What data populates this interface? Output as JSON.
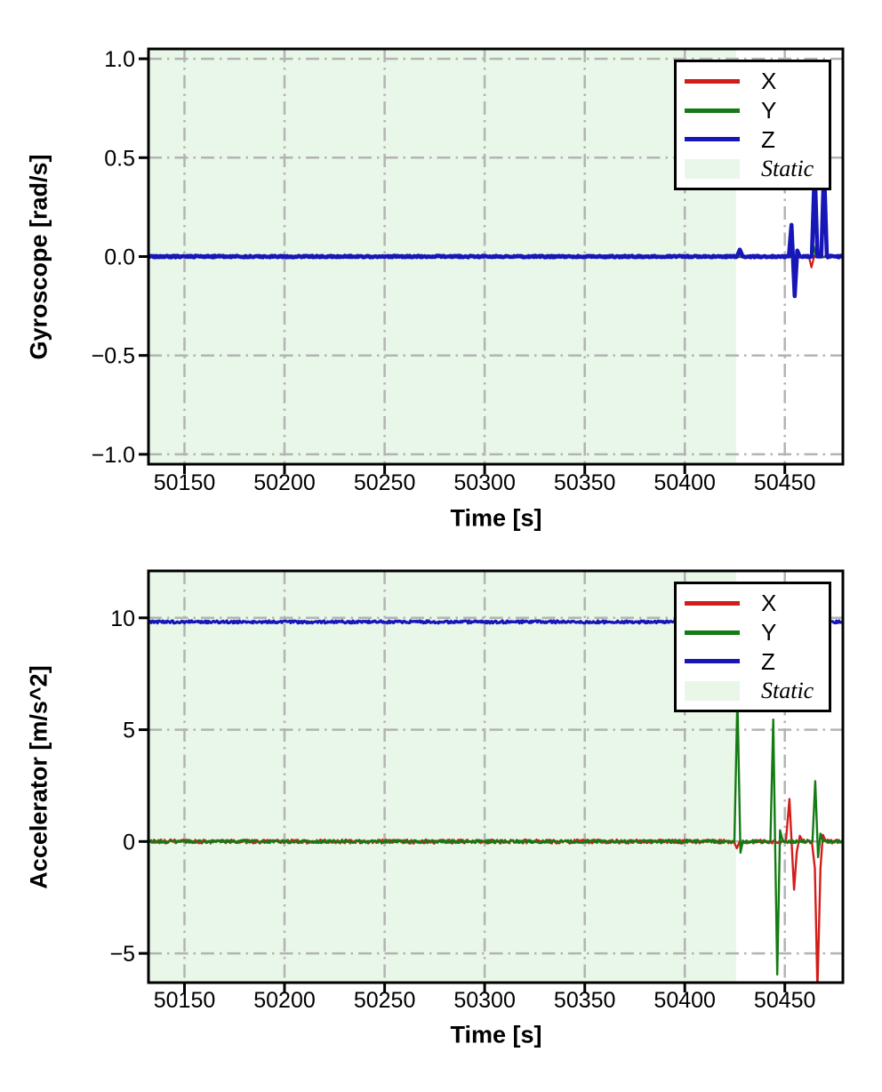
{
  "colors": {
    "red": "#d21e19",
    "green": "#147a14",
    "blue": "#1717b8",
    "static_fill": "#e8f7e8",
    "grid": "#b3b3b3",
    "axis": "#000000",
    "background": "#ffffff"
  },
  "legend": {
    "static_label": "Static",
    "position": "upper right"
  },
  "chart_data": [
    {
      "type": "line",
      "title": "",
      "xlabel": "Time [s]",
      "ylabel": "Gyroscope [rad/s]",
      "xlim": [
        50132,
        50479
      ],
      "ylim": [
        -1.05,
        1.05
      ],
      "grid": "dash-dot",
      "legend_position": "upper right",
      "x_ticks": [
        {
          "v": 50150,
          "label": "50150"
        },
        {
          "v": 50200,
          "label": "50200"
        },
        {
          "v": 50250,
          "label": "50250"
        },
        {
          "v": 50300,
          "label": "50300"
        },
        {
          "v": 50350,
          "label": "50350"
        },
        {
          "v": 50400,
          "label": "50400"
        },
        {
          "v": 50450,
          "label": "50450"
        }
      ],
      "y_ticks": [
        {
          "v": 1.0,
          "label": "1.0"
        },
        {
          "v": 0.5,
          "label": "0.5"
        },
        {
          "v": 0.0,
          "label": "0.0"
        },
        {
          "v": -0.5,
          "label": "−0.5"
        },
        {
          "v": -1.0,
          "label": "−1.0"
        }
      ],
      "static_region": {
        "x0": 50132,
        "x1": 50425.6,
        "label": "Static"
      },
      "series": [
        {
          "name": "X",
          "color_key": "red",
          "noise": 0.004,
          "width": 2.2,
          "points": [
            [
              50132,
              0
            ],
            [
              50462,
              0
            ],
            [
              50463.3,
              -0.055
            ],
            [
              50464.6,
              0
            ],
            [
              50479,
              0
            ]
          ]
        },
        {
          "name": "Y",
          "color_key": "green",
          "noise": 0.004,
          "width": 2.2,
          "points": [
            [
              50132,
              0
            ],
            [
              50463.3,
              0
            ],
            [
              50464.5,
              0.05
            ],
            [
              50465.6,
              0
            ],
            [
              50479,
              0
            ]
          ]
        },
        {
          "name": "Z",
          "color_key": "blue",
          "noise": 0.004,
          "width": 4.6,
          "points": [
            [
              50132,
              0
            ],
            [
              50426,
              0
            ],
            [
              50427.5,
              0.035
            ],
            [
              50429,
              0
            ],
            [
              50452,
              0
            ],
            [
              50453.3,
              0.16
            ],
            [
              50454.1,
              -0.02
            ],
            [
              50454.9,
              -0.2
            ],
            [
              50456.2,
              0.03
            ],
            [
              50457.5,
              0
            ],
            [
              50463.5,
              0
            ],
            [
              50464.9,
              0.45
            ],
            [
              50466.3,
              0
            ],
            [
              50468.2,
              0
            ],
            [
              50469.6,
              0.45
            ],
            [
              50471,
              0
            ],
            [
              50479,
              0
            ]
          ]
        }
      ]
    },
    {
      "type": "line",
      "title": "",
      "xlabel": "Time [s]",
      "ylabel": "Accelerator [m/s^2]",
      "xlim": [
        50132,
        50479
      ],
      "ylim": [
        -6.31,
        12.1
      ],
      "grid": "dash-dot",
      "legend_position": "upper right",
      "x_ticks": [
        {
          "v": 50150,
          "label": "50150"
        },
        {
          "v": 50200,
          "label": "50200"
        },
        {
          "v": 50250,
          "label": "50250"
        },
        {
          "v": 50300,
          "label": "50300"
        },
        {
          "v": 50350,
          "label": "50350"
        },
        {
          "v": 50400,
          "label": "50400"
        },
        {
          "v": 50450,
          "label": "50450"
        }
      ],
      "y_ticks": [
        {
          "v": 10,
          "label": "10"
        },
        {
          "v": 5,
          "label": "5"
        },
        {
          "v": 0,
          "label": "0"
        },
        {
          "v": -5,
          "label": "−5"
        }
      ],
      "static_region": {
        "x0": 50132,
        "x1": 50425.6,
        "label": "Static"
      },
      "series": [
        {
          "name": "X",
          "color_key": "red",
          "noise": 0.09,
          "width": 2.4,
          "points": [
            [
              50132,
              0
            ],
            [
              50424.5,
              0
            ],
            [
              50426,
              -0.3
            ],
            [
              50427.5,
              0
            ],
            [
              50450.5,
              0
            ],
            [
              50452.3,
              1.9
            ],
            [
              50453.6,
              -0.4
            ],
            [
              50454.6,
              -2.15
            ],
            [
              50456,
              -0.45
            ],
            [
              50457.5,
              0.25
            ],
            [
              50459,
              0
            ],
            [
              50463.5,
              0
            ],
            [
              50465,
              -1.2
            ],
            [
              50466.3,
              -6.6
            ],
            [
              50467.8,
              -1.2
            ],
            [
              50469,
              0.3
            ],
            [
              50470.5,
              0
            ],
            [
              50479,
              0
            ]
          ]
        },
        {
          "name": "Y",
          "color_key": "green",
          "noise": 0.07,
          "width": 2.4,
          "points": [
            [
              50132,
              0
            ],
            [
              50424.8,
              0
            ],
            [
              50426.3,
              6.45
            ],
            [
              50427.8,
              -0.5
            ],
            [
              50429,
              0
            ],
            [
              50442.8,
              0
            ],
            [
              50444.2,
              5.45
            ],
            [
              50445.2,
              -0.4
            ],
            [
              50446.2,
              -5.95
            ],
            [
              50447.6,
              0.5
            ],
            [
              50449,
              0
            ],
            [
              50463.8,
              0
            ],
            [
              50465.2,
              2.7
            ],
            [
              50466.6,
              -0.7
            ],
            [
              50467.8,
              0.35
            ],
            [
              50469,
              0
            ],
            [
              50479,
              0
            ]
          ]
        },
        {
          "name": "Z",
          "color_key": "blue",
          "noise": 0.055,
          "width": 3.2,
          "points": [
            [
              50132,
              9.82
            ],
            [
              50479,
              9.82
            ]
          ]
        }
      ]
    }
  ]
}
